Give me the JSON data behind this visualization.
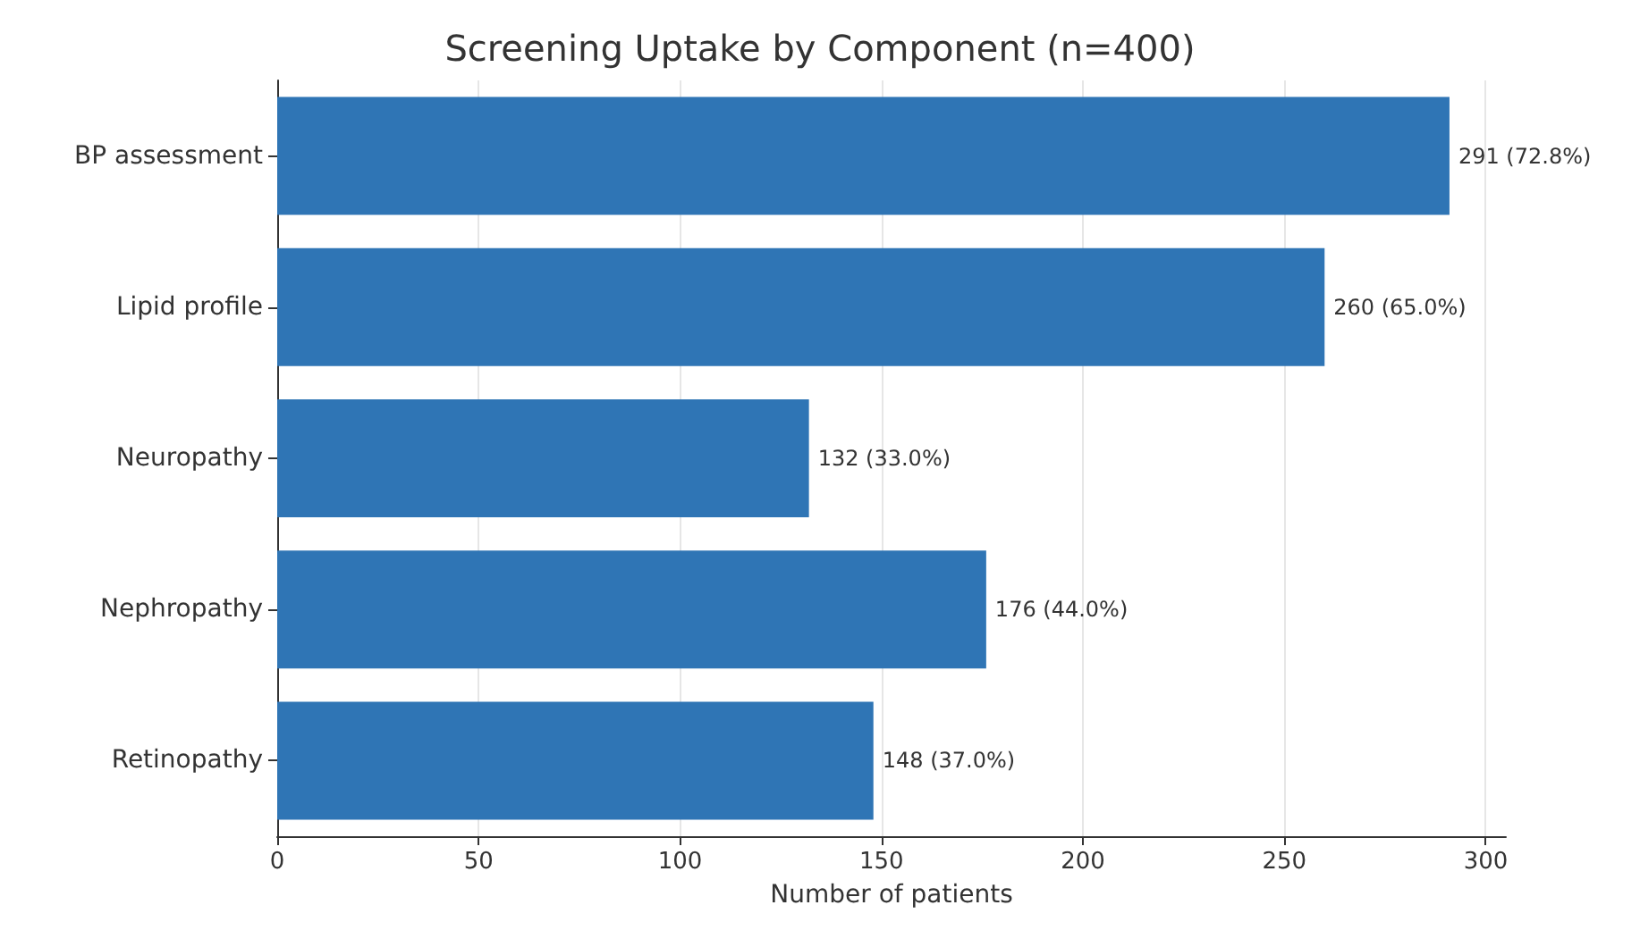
{
  "chart_data": {
    "type": "bar",
    "orientation": "horizontal",
    "title": "Screening Uptake by Component (n=400)",
    "xlabel": "Number of patients",
    "categories": [
      "BP assessment",
      "Lipid profile",
      "Neuropathy",
      "Nephropathy",
      "Retinopathy"
    ],
    "values": [
      291,
      260,
      132,
      176,
      148
    ],
    "value_labels": [
      "291 (72.8%)",
      "260 (65.0%)",
      "132 (33.0%)",
      "176 (44.0%)",
      "148 (37.0%)"
    ],
    "color": "#2f75b5",
    "xlim": [
      0,
      305
    ],
    "xticks": [
      0,
      50,
      100,
      150,
      200,
      250,
      300
    ],
    "grid": "x"
  }
}
